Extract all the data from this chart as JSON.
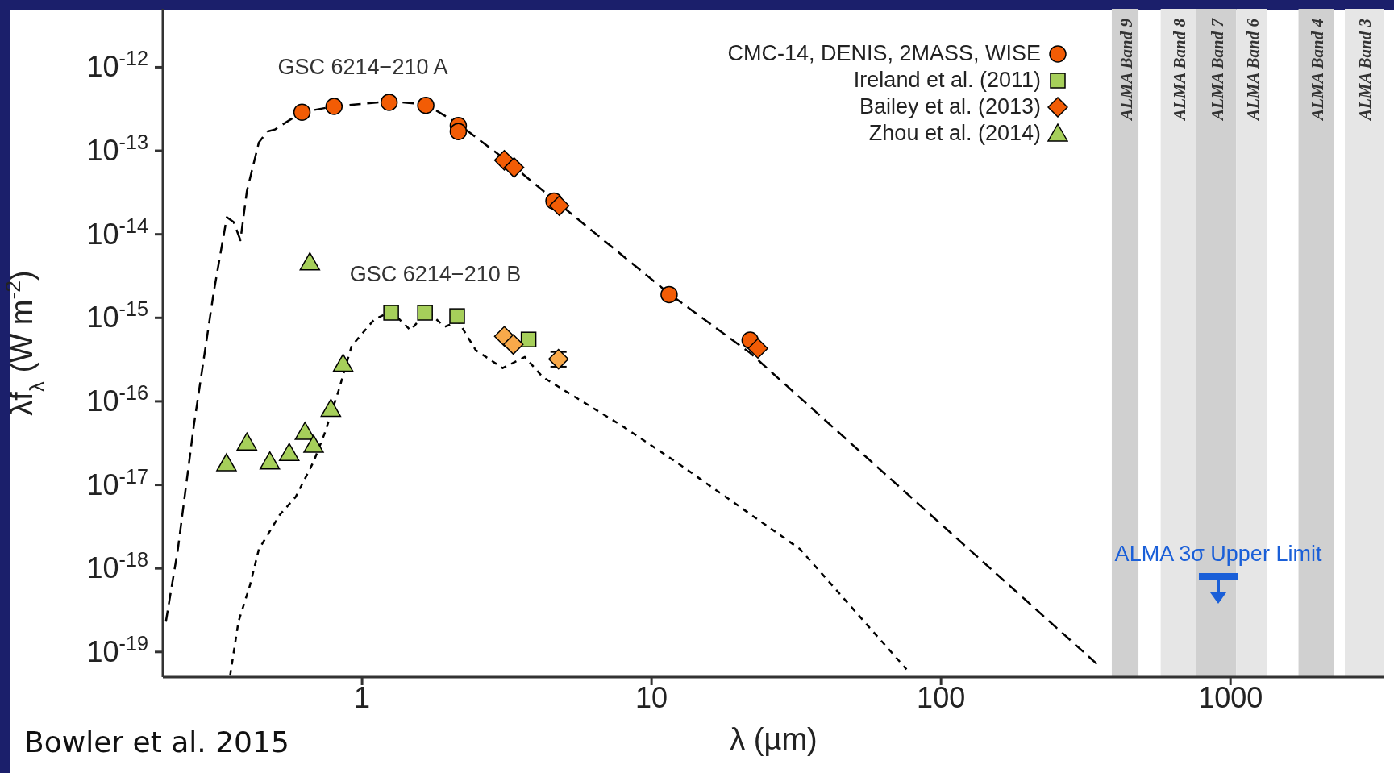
{
  "chart_data": {
    "type": "scatter",
    "xlabel": "λ (µm)",
    "ylabel": "λf$_{λ}$ (W m$^{-2}$)",
    "log": "xy",
    "xlim": [
      0.205,
      3400
    ],
    "ylim": [
      5e-20,
      5e-12
    ],
    "xticks": [
      1,
      10,
      100,
      1000
    ],
    "yticks": [
      {
        "value": 1e-12,
        "label": "10$^{-12}$"
      },
      {
        "value": 1e-13,
        "label": "10$^{-13}$"
      },
      {
        "value": 1e-14,
        "label": "10$^{-14}$"
      },
      {
        "value": 1e-15,
        "label": "10$^{-15}$"
      },
      {
        "value": 1e-16,
        "label": "10$^{-16}$"
      },
      {
        "value": 1e-17,
        "label": "10$^{-17}$"
      },
      {
        "value": 1e-18,
        "label": "10$^{-18}$"
      },
      {
        "value": 1e-19,
        "label": "10$^{-19}$"
      }
    ],
    "legend": "top right",
    "series": [
      {
        "name": "CMC-14, DENIS, 2MASS, WISE",
        "marker": "circle",
        "color": "#f25c05",
        "x": [
          0.62,
          0.8,
          1.24,
          1.66,
          2.15,
          2.15,
          4.6,
          11.5,
          21.9
        ],
        "values": [
          2.9e-13,
          3.4e-13,
          3.8e-13,
          3.5e-13,
          2e-13,
          1.7e-13,
          2.5e-14,
          1.9e-15,
          5.4e-16
        ]
      },
      {
        "name": "Ireland et al. (2011)",
        "marker": "square",
        "color": "#a6cf5a",
        "x": [
          1.26,
          1.65,
          2.13,
          3.76
        ],
        "values": [
          1.15e-15,
          1.15e-15,
          1.05e-15,
          5.5e-16
        ]
      },
      {
        "name": "Bailey et al. (2013)",
        "marker": "diamond",
        "color": "#f25c05",
        "x": [
          3.1,
          3.35,
          4.8,
          23.3
        ],
        "values": [
          7.7e-14,
          6.3e-14,
          2.2e-14,
          4.3e-16
        ]
      },
      {
        "name": "Zhou et al. (2014)",
        "marker": "triangle",
        "color": "#a6cf5a",
        "x": [
          0.34,
          0.4,
          0.48,
          0.56,
          0.635,
          0.66,
          0.68,
          0.78,
          0.86
        ],
        "values": [
          1.8e-17,
          3.2e-17,
          1.9e-17,
          2.4e-17,
          4.3e-17,
          4.6e-15,
          3e-17,
          8.1e-17,
          2.8e-16
        ]
      },
      {
        "marker": "diamond",
        "color": "#f8a94a",
        "x": [
          3.1,
          3.33,
          4.77
        ],
        "values": [
          6e-16,
          4.8e-16,
          3.2e-16
        ],
        "errors": [
          null,
          null,
          [
            2.6e-16,
            3.9e-16
          ]
        ]
      },
      {
        "type": "line",
        "marker": "none",
        "line_style": "dashed",
        "color": "#000000",
        "x": [
          0.21,
          0.231,
          0.262,
          0.307,
          0.341,
          0.36,
          0.38,
          0.4,
          0.44,
          0.47,
          0.5,
          0.62,
          0.8,
          1.24,
          1.66,
          2.15,
          3.1,
          4.6,
          11.5,
          21.9,
          350
        ],
        "values": [
          2.3e-19,
          1.7e-18,
          5e-17,
          2e-15,
          1.6e-14,
          1.4e-14,
          8.5e-15,
          3.3e-14,
          1.26e-13,
          1.7e-13,
          1.8e-13,
          2.9e-13,
          3.4e-13,
          3.9e-13,
          3.6e-13,
          2.1e-13,
          8e-14,
          2.6e-14,
          1.95e-15,
          3.8e-16,
          6.9e-20
        ]
      },
      {
        "type": "line",
        "marker": "none",
        "line_style": "dotted",
        "color": "#000000",
        "x": [
          0.35,
          0.374,
          0.41,
          0.44,
          0.52,
          0.59,
          0.68,
          0.74,
          0.83,
          0.92,
          1.1,
          1.26,
          1.47,
          1.68,
          1.93,
          2.15,
          2.47,
          3.06,
          3.65,
          4.21,
          7.9,
          12.1,
          32.6,
          76
        ],
        "values": [
          5.2e-20,
          2.3e-19,
          6.3e-19,
          1.7e-18,
          4.4e-18,
          7.2e-18,
          1.9e-17,
          4e-17,
          1.35e-16,
          4.6e-16,
          9.5e-16,
          1.2e-15,
          7.1e-16,
          1.2e-15,
          7.8e-16,
          9.1e-16,
          4.1e-16,
          2.5e-16,
          3.4e-16,
          1.95e-16,
          5.1e-17,
          1.9e-17,
          1.7e-18,
          6.2e-20
        ]
      }
    ],
    "bands": [
      {
        "axis": "x",
        "from": 389,
        "to": 481,
        "label": "ALMA Band 9",
        "color": "#d0d0d0"
      },
      {
        "axis": "x",
        "from": 574,
        "to": 762,
        "label": "ALMA Band 8",
        "color": "#e6e6e6"
      },
      {
        "axis": "x",
        "from": 762,
        "to": 1047,
        "label": "ALMA Band 7",
        "color": "#d0d0d0"
      },
      {
        "axis": "x",
        "from": 1047,
        "to": 1341,
        "label": "ALMA Band 6",
        "color": "#e6e6e6"
      },
      {
        "axis": "x",
        "from": 1718,
        "to": 2280,
        "label": "ALMA Band 4",
        "color": "#d0d0d0"
      },
      {
        "axis": "x",
        "from": 2483,
        "to": 3400,
        "label": "ALMA Band 3",
        "color": "#e6e6e6"
      }
    ],
    "annotations": [
      "GSC 6214−210 A",
      "GSC 6214−210 B",
      "ALMA 3σ Upper Limit",
      "Bowler et al. 2015"
    ]
  }
}
